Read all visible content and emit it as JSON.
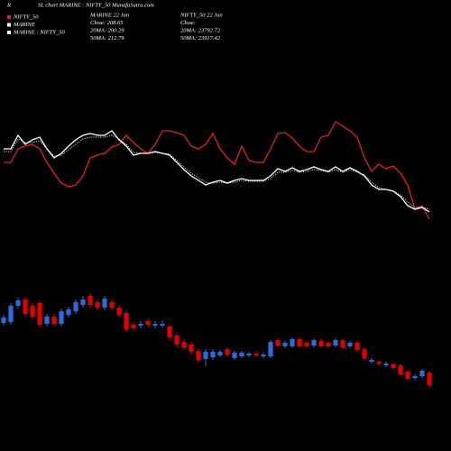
{
  "header": {
    "mark": "R",
    "title": "SL chart MARINE : NIFTY_50  MunafaSutra.com",
    "info": [
      [
        "MARINE 22 Jan",
        "Close: 208.65",
        "20MA: 200.29",
        "50MA: 212.79"
      ],
      [
        "NIFTY_50 22 Jan",
        "Close:",
        "20MA: 23792.72",
        "50MA: 23917.42"
      ]
    ]
  },
  "chart_data": [
    {
      "type": "line",
      "ylim": [
        0,
        200
      ],
      "series": [
        {
          "name": "NIFTY_50",
          "color": "#e02020",
          "style": "solid",
          "values": [
            120,
            120,
            135,
            138,
            140,
            135,
            120,
            108,
            97,
            93,
            95,
            105,
            125,
            128,
            130,
            137,
            140,
            150,
            142,
            135,
            130,
            140,
            155,
            155,
            153,
            150,
            138,
            135,
            140,
            152,
            135,
            125,
            118,
            138,
            122,
            120,
            120,
            135,
            152,
            153,
            147,
            138,
            132,
            132,
            148,
            150,
            165,
            160,
            155,
            148,
            125,
            110,
            118,
            113,
            116,
            108,
            95,
            68,
            72,
            57
          ]
        },
        {
          "name": "MARINE",
          "color": "#ffffff",
          "style": "solid",
          "values": [
            135,
            135,
            150,
            140,
            145,
            148,
            135,
            125,
            130,
            138,
            145,
            150,
            152,
            150,
            150,
            155,
            145,
            138,
            128,
            130,
            130,
            132,
            130,
            128,
            120,
            112,
            105,
            100,
            95,
            98,
            100,
            97,
            100,
            102,
            100,
            100,
            100,
            105,
            113,
            110,
            114,
            110,
            112,
            115,
            112,
            110,
            115,
            110,
            114,
            110,
            105,
            95,
            90,
            90,
            88,
            82,
            72,
            68,
            70,
            65
          ]
        },
        {
          "name": "MARINE : NIFTY_50",
          "color": "#ffffff",
          "style": "dotted",
          "values": [
            132,
            132,
            146,
            142,
            142,
            144,
            135,
            127,
            128,
            134,
            140,
            146,
            148,
            148,
            148,
            150,
            146,
            140,
            131,
            130,
            130,
            131,
            130,
            129,
            122,
            115,
            108,
            103,
            98,
            97,
            98,
            97,
            98,
            100,
            99,
            99,
            99,
            102,
            109,
            109,
            111,
            109,
            110,
            112,
            111,
            109,
            112,
            109,
            112,
            109,
            106,
            98,
            92,
            90,
            88,
            84,
            76,
            70,
            70,
            68
          ]
        }
      ]
    },
    {
      "type": "candlestick",
      "ylim": [
        0,
        200
      ],
      "up_color": "#2a6be0",
      "down_color": "#e00000",
      "open": [
        142,
        143,
        161,
        168,
        161,
        164,
        141,
        149,
        141,
        151,
        155,
        162,
        172,
        165,
        159,
        165,
        159,
        153,
        140,
        139,
        144,
        139,
        139,
        138,
        128,
        121,
        118,
        111,
        102,
        104,
        106,
        113,
        103,
        105,
        106,
        108,
        105,
        105,
        123,
        116,
        116,
        124,
        120,
        117,
        122,
        120,
        117,
        123,
        116,
        120,
        113,
        99,
        99,
        95,
        96,
        95,
        88,
        81,
        83,
        87
      ],
      "high": [
        151,
        164,
        170,
        171,
        164,
        167,
        152,
        152,
        158,
        160,
        168,
        172,
        175,
        168,
        172,
        168,
        162,
        156,
        143,
        144,
        147,
        144,
        145,
        141,
        131,
        124,
        121,
        114,
        113,
        113,
        112,
        115,
        111,
        111,
        110,
        110,
        109,
        123,
        125,
        122,
        126,
        126,
        122,
        125,
        124,
        122,
        125,
        125,
        122,
        122,
        115,
        103,
        101,
        99,
        98,
        97,
        90,
        85,
        91,
        89
      ],
      "low": [
        139,
        140,
        158,
        149,
        146,
        137,
        138,
        138,
        138,
        148,
        152,
        159,
        159,
        156,
        156,
        156,
        148,
        132,
        133,
        136,
        137,
        136,
        137,
        123,
        115,
        112,
        107,
        98,
        94,
        101,
        104,
        105,
        101,
        103,
        104,
        104,
        103,
        103,
        115,
        114,
        114,
        114,
        114,
        115,
        114,
        114,
        115,
        113,
        114,
        110,
        101,
        97,
        95,
        93,
        90,
        83,
        78,
        79,
        81,
        71
      ],
      "close": [
        148,
        161,
        167,
        152,
        149,
        140,
        149,
        141,
        155,
        157,
        165,
        168,
        162,
        159,
        169,
        159,
        151,
        135,
        136,
        141,
        140,
        141,
        141,
        126,
        118,
        115,
        110,
        101,
        110,
        110,
        110,
        107,
        109,
        109,
        108,
        106,
        107,
        121,
        117,
        120,
        124,
        116,
        116,
        123,
        116,
        116,
        123,
        115,
        120,
        112,
        103,
        101,
        97,
        97,
        92,
        85,
        80,
        83,
        89,
        73
      ]
    }
  ]
}
